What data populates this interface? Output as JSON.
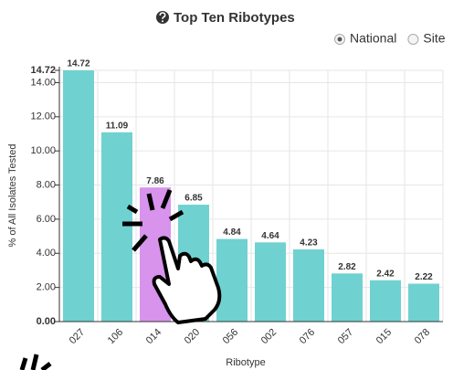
{
  "chart_data": {
    "type": "bar",
    "title": "Top Ten Ribotypes",
    "controls": [
      "National",
      "Site"
    ],
    "selected_control": "National",
    "x_label": "Ribotype",
    "y_label": "% of All Isolates Tested",
    "categories": [
      "027",
      "106",
      "014",
      "020",
      "056",
      "002",
      "076",
      "057",
      "015",
      "078"
    ],
    "values": [
      14.72,
      11.09,
      7.86,
      6.85,
      4.84,
      4.64,
      4.23,
      2.82,
      2.42,
      2.22
    ],
    "colors": [
      "#70d1d1",
      "#70d1d1",
      "#d893ec",
      "#70d1d1",
      "#70d1d1",
      "#70d1d1",
      "#70d1d1",
      "#70d1d1",
      "#70d1d1",
      "#70d1d1"
    ],
    "ylim": [
      0,
      14.72
    ],
    "yticks": [
      {
        "value": 0,
        "label": "0.00"
      },
      {
        "value": 2,
        "label": "2.00"
      },
      {
        "value": 4,
        "label": "4.00"
      },
      {
        "value": 6,
        "label": "6.00"
      },
      {
        "value": 8,
        "label": "8.00"
      },
      {
        "value": 10,
        "label": "10.00"
      },
      {
        "value": 12,
        "label": "12.00"
      },
      {
        "value": 14,
        "label": "14.00"
      },
      14.72
    ],
    "grid": true
  }
}
